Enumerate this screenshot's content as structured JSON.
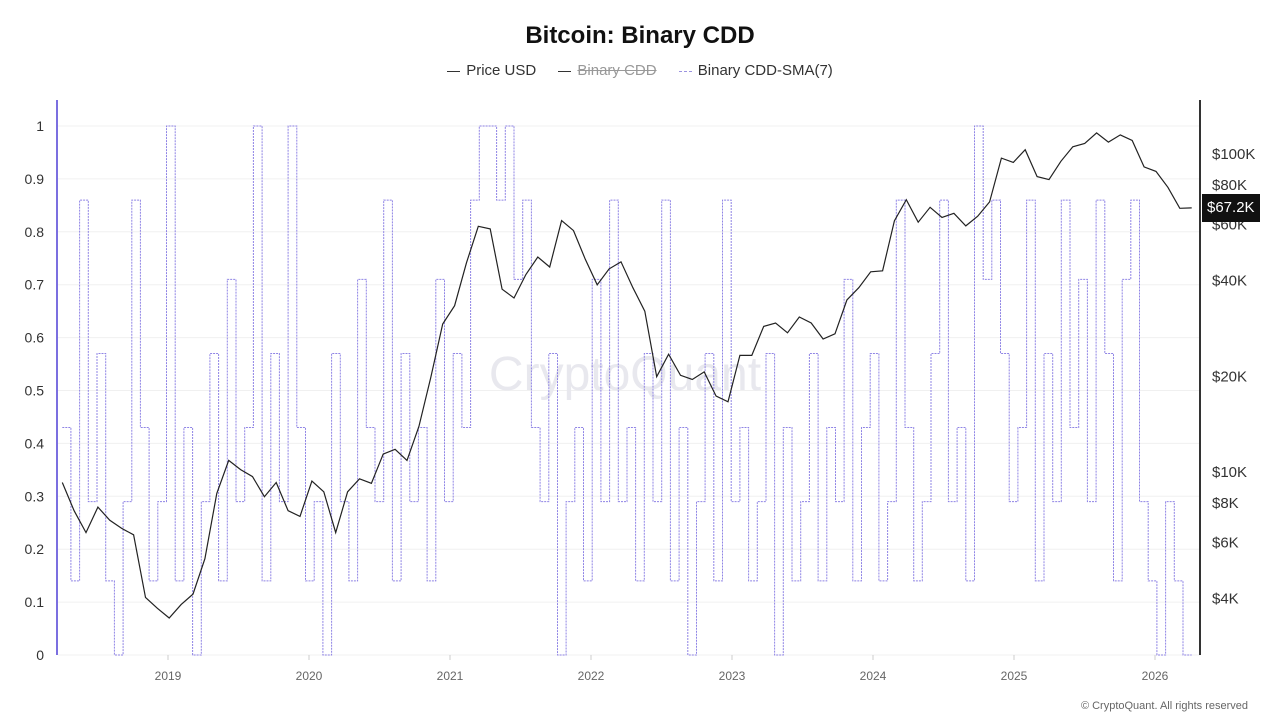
{
  "chart_data": {
    "type": "line",
    "title": "Bitcoin: Binary CDD",
    "legend": [
      {
        "name": "Price USD",
        "color": "#222222",
        "visible": true
      },
      {
        "name": "Binary CDD",
        "color": "#222222",
        "visible": false
      },
      {
        "name": "Binary CDD-SMA(7)",
        "color": "#7b6fe0",
        "visible": true
      }
    ],
    "legend_position": "top-center",
    "x_ticks": [
      "2019",
      "2020",
      "2021",
      "2022",
      "2023",
      "2024",
      "2025",
      "2026"
    ],
    "x_range": [
      2018.25,
      2026.26
    ],
    "left_axis": {
      "ticks": [
        "0",
        "0.1",
        "0.2",
        "0.3",
        "0.4",
        "0.5",
        "0.6",
        "0.7",
        "0.8",
        "0.9",
        "1"
      ],
      "range": [
        0,
        1
      ]
    },
    "right_axis": {
      "scale": "log",
      "ticks": [
        {
          "v": 4000,
          "label": "$4K"
        },
        {
          "v": 6000,
          "label": "$6K"
        },
        {
          "v": 8000,
          "label": "$8K"
        },
        {
          "v": 10000,
          "label": "$10K"
        },
        {
          "v": 20000,
          "label": "$20K"
        },
        {
          "v": 40000,
          "label": "$40K"
        },
        {
          "v": 60000,
          "label": "$60K"
        },
        {
          "v": 80000,
          "label": "$80K"
        },
        {
          "v": 100000,
          "label": "$100K"
        }
      ]
    },
    "current_price_label": "$67.2K",
    "grid": true,
    "price_usd_monthly_from_2018_04": [
      9200,
      7500,
      6400,
      7700,
      7000,
      6600,
      6300,
      4000,
      3700,
      3450,
      3800,
      4100,
      5300,
      8500,
      10800,
      10100,
      9600,
      8300,
      9200,
      7500,
      7200,
      9300,
      8600,
      6400,
      8600,
      9450,
      9150,
      11300,
      11700,
      10800,
      13800,
      19700,
      29000,
      33100,
      45200,
      58800,
      57700,
      37300,
      35000,
      41500,
      47100,
      43800,
      61300,
      57000,
      46300,
      38500,
      43200,
      45500,
      37700,
      31800,
      19800,
      23300,
      20000,
      19400,
      20500,
      17200,
      16500,
      23100,
      23100,
      28500,
      29200,
      27200,
      30500,
      29200,
      26000,
      27000,
      34500,
      37700,
      42300,
      42600,
      61200,
      71300,
      60600,
      67500,
      62700,
      64600,
      59000,
      63300,
      70200,
      96400,
      93400,
      102400,
      84300,
      82500,
      94200,
      104600,
      107100,
      115700,
      108200,
      114000,
      109500,
      90400,
      87500,
      78000,
      67000,
      67200
    ],
    "binary_cdd_sma7": [
      0.43,
      0.14,
      0.86,
      0.29,
      0.57,
      0.14,
      0,
      0.29,
      0.86,
      0.43,
      0.14,
      0.29,
      1,
      0.14,
      0.43,
      0,
      0.29,
      0.57,
      0.14,
      0.71,
      0.29,
      0.43,
      1,
      0.14,
      0.57,
      0.29,
      1,
      0.43,
      0.14,
      0.29,
      0,
      0.57,
      0.29,
      0.14,
      0.71,
      0.43,
      0.29,
      0.86,
      0.14,
      0.57,
      0.29,
      0.43,
      0.14,
      0.71,
      0.29,
      0.57,
      0.43,
      0.86,
      1,
      1,
      0.86,
      1,
      0.71,
      0.86,
      0.43,
      0.29,
      0.57,
      0,
      0.29,
      0.43,
      0.14,
      0.71,
      0.29,
      0.86,
      0.29,
      0.43,
      0.14,
      0.57,
      0.29,
      0.86,
      0.14,
      0.43,
      0,
      0.29,
      0.57,
      0.14,
      0.86,
      0.29,
      0.43,
      0.14,
      0.29,
      0.57,
      0,
      0.43,
      0.14,
      0.29,
      0.57,
      0.14,
      0.43,
      0.29,
      0.71,
      0.14,
      0.43,
      0.57,
      0.14,
      0.29,
      0.86,
      0.43,
      0.14,
      0.29,
      0.57,
      0.86,
      0.29,
      0.43,
      0.14,
      1,
      0.71,
      0.86,
      0.57,
      0.29,
      0.43,
      0.86,
      0.14,
      0.57,
      0.29,
      0.86,
      0.43,
      0.71,
      0.29,
      0.86,
      0.57,
      0.14,
      0.71,
      0.86,
      0.29,
      0.14,
      0,
      0.29,
      0.14,
      0
    ]
  },
  "watermark": "CryptoQuant",
  "copyright": "© CryptoQuant. All rights reserved"
}
